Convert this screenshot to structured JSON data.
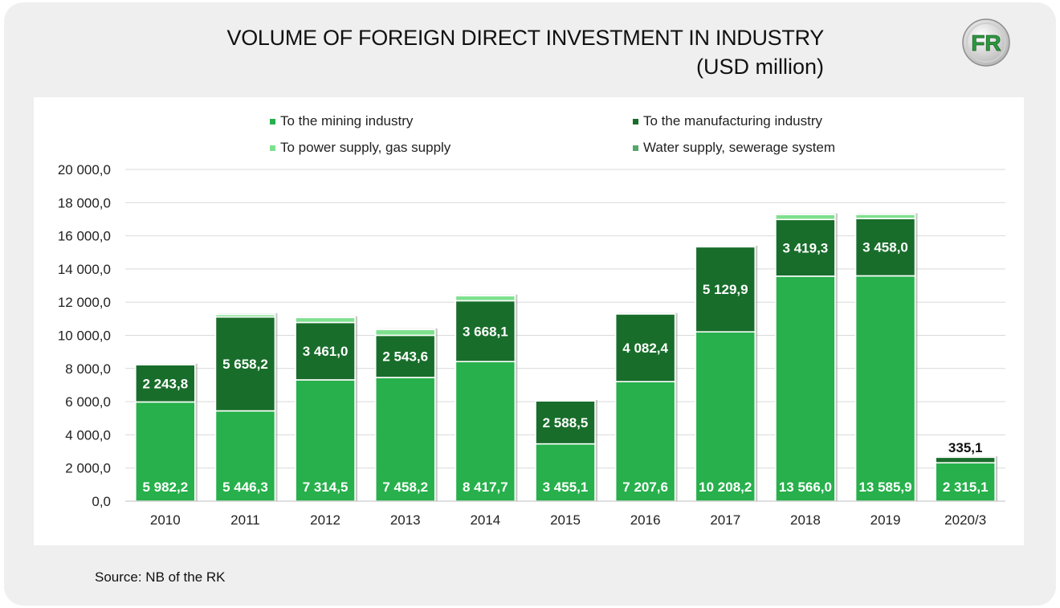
{
  "header": {
    "title_line1": "VOLUME OF FOREIGN DIRECT INVESTMENT IN INDUSTRY",
    "title_line2": "(USD million)"
  },
  "logo": {
    "text": "FR",
    "icon": "fr-logo-icon"
  },
  "source": "Source: NB of the RK",
  "colors": {
    "mining": "#27b04b",
    "manufacturing": "#186d2a",
    "power": "#7ee08e",
    "water": "#57a66b"
  },
  "chart_data": {
    "type": "bar",
    "stacked": true,
    "categories": [
      "2010",
      "2011",
      "2012",
      "2013",
      "2014",
      "2015",
      "2016",
      "2017",
      "2018",
      "2019",
      "2020/3"
    ],
    "series": [
      {
        "name": "To the mining industry",
        "values": [
          5982.2,
          5446.3,
          7314.5,
          7458.2,
          8417.7,
          3455.1,
          7207.6,
          10208.2,
          13566.0,
          13585.9,
          2315.1
        ],
        "labels": [
          "5 982,2",
          "5 446,3",
          "7 314,5",
          "7 458,2",
          "8 417,7",
          "3 455,1",
          "7 207,6",
          "10 208,2",
          "13 566,0",
          "13 585,9",
          "2 315,1"
        ]
      },
      {
        "name": "To the manufacturing industry",
        "values": [
          2243.8,
          5658.2,
          3461.0,
          2543.6,
          3668.1,
          2588.5,
          4082.4,
          5129.9,
          3419.3,
          3458.0,
          335.1
        ],
        "labels": [
          "2 243,8",
          "5 658,2",
          "3 461,0",
          "2 543,6",
          "3 668,1",
          "2 588,5",
          "4 082,4",
          "5 129,9",
          "3 419,3",
          "3 458,0",
          "335,1"
        ]
      },
      {
        "name": "To power supply, gas supply",
        "values": [
          0,
          150,
          300,
          350,
          300,
          0,
          0,
          0,
          300,
          250,
          0
        ]
      },
      {
        "name": "Water supply, sewerage system",
        "values": [
          10,
          20,
          20,
          20,
          20,
          10,
          10,
          10,
          20,
          20,
          5
        ]
      }
    ],
    "ylim": [
      0,
      20000
    ],
    "yticks": [
      0,
      2000,
      4000,
      6000,
      8000,
      10000,
      12000,
      14000,
      16000,
      18000,
      20000
    ],
    "ytick_labels": [
      "0,0",
      "2 000,0",
      "4 000,0",
      "6 000,0",
      "8 000,0",
      "10 000,0",
      "12 000,0",
      "14 000,0",
      "16 000,0",
      "18 000,0",
      "20 000,0"
    ],
    "grid": true,
    "legend_position": "top"
  }
}
